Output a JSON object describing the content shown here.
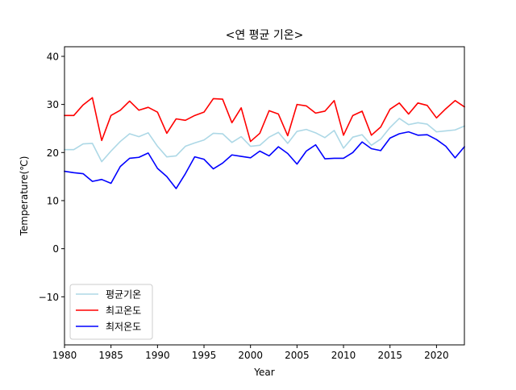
{
  "chart_data": {
    "type": "line",
    "title": "<연 평균 기온>",
    "xlabel": "Year",
    "ylabel": "Temperature(℃)",
    "xlim": [
      1980,
      2023
    ],
    "ylim": [
      -20,
      42
    ],
    "grid": false,
    "legend_position": "lower-left",
    "x_ticks": [
      1980,
      1985,
      1990,
      1995,
      2000,
      2005,
      2010,
      2015,
      2020
    ],
    "x_tick_labels": [
      "1980",
      "1985",
      "1990",
      "1995",
      "2000",
      "2005",
      "2010",
      "2015",
      "2020"
    ],
    "y_ticks": [
      -10,
      0,
      10,
      20,
      30,
      40
    ],
    "y_tick_labels": [
      "−10",
      "0",
      "10",
      "20",
      "30",
      "40"
    ],
    "x": [
      1980,
      1981,
      1982,
      1983,
      1984,
      1985,
      1986,
      1987,
      1988,
      1989,
      1990,
      1991,
      1992,
      1993,
      1994,
      1995,
      1996,
      1997,
      1998,
      1999,
      2000,
      2001,
      2002,
      2003,
      2004,
      2005,
      2006,
      2007,
      2008,
      2009,
      2010,
      2011,
      2012,
      2013,
      2014,
      2015,
      2016,
      2017,
      2018,
      2019,
      2020,
      2021,
      2022,
      2023
    ],
    "series": [
      {
        "name": "평균기온",
        "color": "#add8e6",
        "values": [
          20.6,
          20.6,
          21.8,
          21.9,
          18.1,
          20.3,
          22.3,
          23.9,
          23.3,
          24.1,
          21.3,
          19.1,
          19.3,
          21.3,
          22.0,
          22.6,
          24.0,
          23.9,
          22.1,
          23.3,
          21.3,
          21.5,
          23.2,
          24.2,
          21.9,
          24.4,
          24.8,
          24.1,
          23.1,
          24.6,
          20.9,
          23.2,
          23.7,
          21.5,
          22.8,
          25.2,
          27.1,
          25.8,
          26.2,
          25.9,
          24.3,
          24.5,
          24.7,
          25.5
        ]
      },
      {
        "name": "최고온도",
        "color": "#ff0000",
        "values": [
          27.7,
          27.7,
          29.9,
          31.4,
          22.5,
          27.7,
          28.8,
          30.7,
          28.8,
          29.4,
          28.4,
          24.0,
          27.0,
          26.7,
          27.7,
          28.4,
          31.2,
          31.1,
          26.2,
          29.3,
          22.3,
          24.0,
          28.7,
          28.0,
          23.5,
          30.0,
          29.7,
          28.2,
          28.6,
          30.8,
          23.6,
          27.7,
          28.6,
          23.6,
          25.3,
          29.0,
          30.3,
          28.0,
          30.3,
          29.8,
          27.2,
          29.1,
          30.8,
          29.5
        ]
      },
      {
        "name": "최저온도",
        "color": "#0000ff",
        "values": [
          16.1,
          15.8,
          15.6,
          14.0,
          14.4,
          13.6,
          17.1,
          18.8,
          19.0,
          19.9,
          16.7,
          15.0,
          12.5,
          15.6,
          19.1,
          18.6,
          16.6,
          17.8,
          19.5,
          19.2,
          18.9,
          20.3,
          19.3,
          21.2,
          19.8,
          17.6,
          20.3,
          21.6,
          18.7,
          18.8,
          18.8,
          20.0,
          22.2,
          20.8,
          20.4,
          23.0,
          23.9,
          24.3,
          23.6,
          23.7,
          22.7,
          21.3,
          18.9,
          21.2
        ]
      }
    ]
  }
}
